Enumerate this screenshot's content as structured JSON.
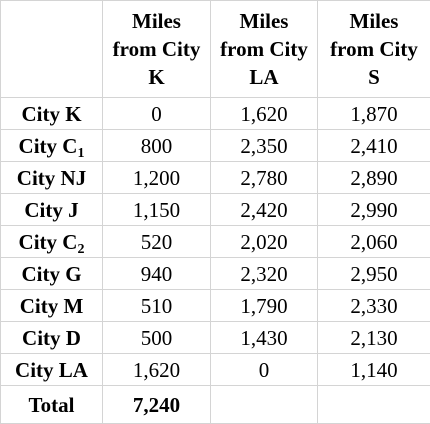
{
  "table": {
    "headers": [
      {
        "lines": []
      },
      {
        "lines": [
          "Miles",
          "from City",
          "K"
        ]
      },
      {
        "lines": [
          "Miles",
          "from City",
          "LA"
        ]
      },
      {
        "lines": [
          "Miles",
          "from City",
          "S"
        ]
      }
    ],
    "rows": [
      {
        "city": "City K",
        "sub": "",
        "k": "0",
        "la": "1,620",
        "s": "1,870"
      },
      {
        "city": "City C",
        "sub": "1",
        "k": "800",
        "la": "2,350",
        "s": "2,410"
      },
      {
        "city": "City NJ",
        "sub": "",
        "k": "1,200",
        "la": "2,780",
        "s": "2,890"
      },
      {
        "city": "City J",
        "sub": "",
        "k": "1,150",
        "la": "2,420",
        "s": "2,990"
      },
      {
        "city": "City C",
        "sub": "2",
        "k": "520",
        "la": "2,020",
        "s": "2,060"
      },
      {
        "city": "City G",
        "sub": "",
        "k": "940",
        "la": "2,320",
        "s": "2,950"
      },
      {
        "city": "City M",
        "sub": "",
        "k": "510",
        "la": "1,790",
        "s": "2,330"
      },
      {
        "city": "City D",
        "sub": "",
        "k": "500",
        "la": "1,430",
        "s": "2,130"
      },
      {
        "city": "City LA",
        "sub": "",
        "k": "1,620",
        "la": "0",
        "s": "1,140"
      }
    ],
    "total": {
      "label": "Total",
      "k": "7,240",
      "la": "",
      "s": ""
    }
  }
}
